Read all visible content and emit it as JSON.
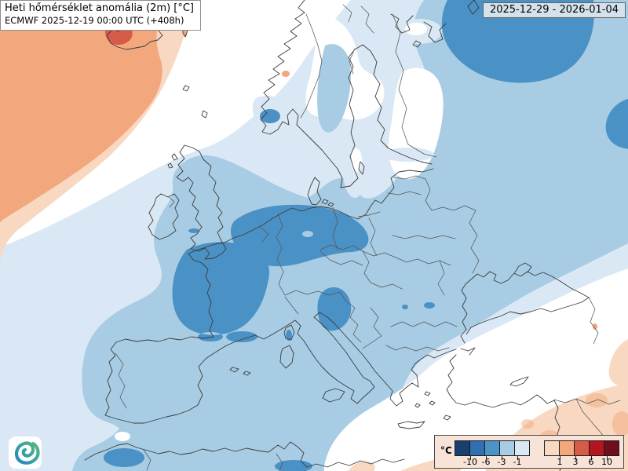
{
  "header": {
    "title_line1": "Heti hőmérséklet anomália (2m) [°C]",
    "title_line2": "ECMWF 2025-12-19 00:00 UTC (+408h)",
    "valid_range": "2025-12-29 - 2026-01-04"
  },
  "legend": {
    "unit": "°C",
    "cold_colors": [
      "#17406f",
      "#2f6fb2",
      "#4d93c6",
      "#a7cce3",
      "#d9e8f4"
    ],
    "warm_colors": [
      "#f9d9c1",
      "#f2a87c",
      "#d65b49",
      "#b31621",
      "#6f0e1d"
    ],
    "cold_ticks": [
      "-10",
      "-6",
      "-3",
      "-1"
    ],
    "warm_ticks": [
      "1",
      "3",
      "6",
      "10"
    ]
  },
  "map": {
    "palette": {
      "neutral": "#ffffff",
      "cold_light": "#d9e8f4",
      "cold_mid": "#a7cce3",
      "cold_strong": "#4a91c5",
      "warm_light": "#f8d8c0",
      "warm_mid": "#f2a77c",
      "warm_strong": "#d65b49",
      "coastline": "#3c3c3c",
      "border": "#575757"
    },
    "logo": {
      "green": "#56b583",
      "teal": "#35a3a0",
      "blue": "#2f86bb"
    }
  }
}
